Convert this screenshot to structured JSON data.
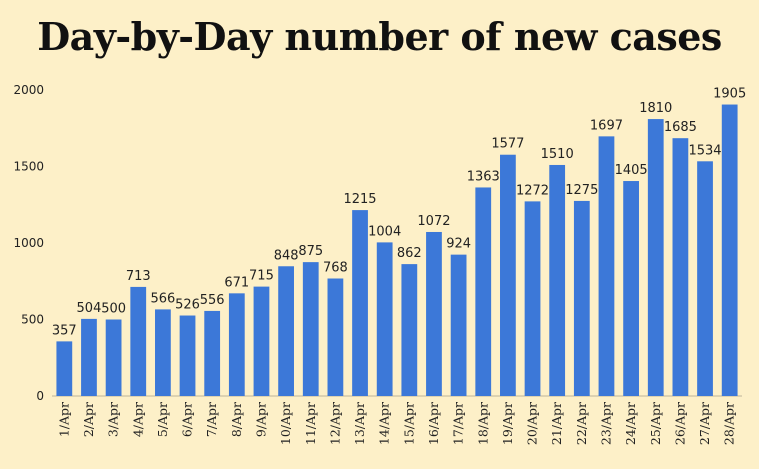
{
  "chart_data": {
    "type": "bar",
    "title": "Day-by-Day number of new cases",
    "xlabel": "",
    "ylabel": "",
    "ylim": [
      0,
      2000
    ],
    "yticks": [
      0,
      500,
      1000,
      1500,
      2000
    ],
    "grid": false,
    "legend": "none",
    "bar_color": "#3c78d8",
    "categories": [
      "1/Apr",
      "2/Apr",
      "3/Apr",
      "4/Apr",
      "5/Apr",
      "6/Apr",
      "7/Apr",
      "8/Apr",
      "9/Apr",
      "10/Apr",
      "11/Apr",
      "12/Apr",
      "13/Apr",
      "14/Apr",
      "15/Apr",
      "16/Apr",
      "17/Apr",
      "18/Apr",
      "19/Apr",
      "20/Apr",
      "21/Apr",
      "22/Apr",
      "23/Apr",
      "24/Apr",
      "25/Apr",
      "26/Apr",
      "27/Apr",
      "28/Apr"
    ],
    "values": [
      357,
      504,
      500,
      713,
      566,
      526,
      556,
      671,
      715,
      848,
      875,
      768,
      1215,
      1004,
      862,
      1072,
      924,
      1363,
      1577,
      1272,
      1510,
      1275,
      1697,
      1405,
      1810,
      1685,
      1534,
      1905
    ]
  }
}
